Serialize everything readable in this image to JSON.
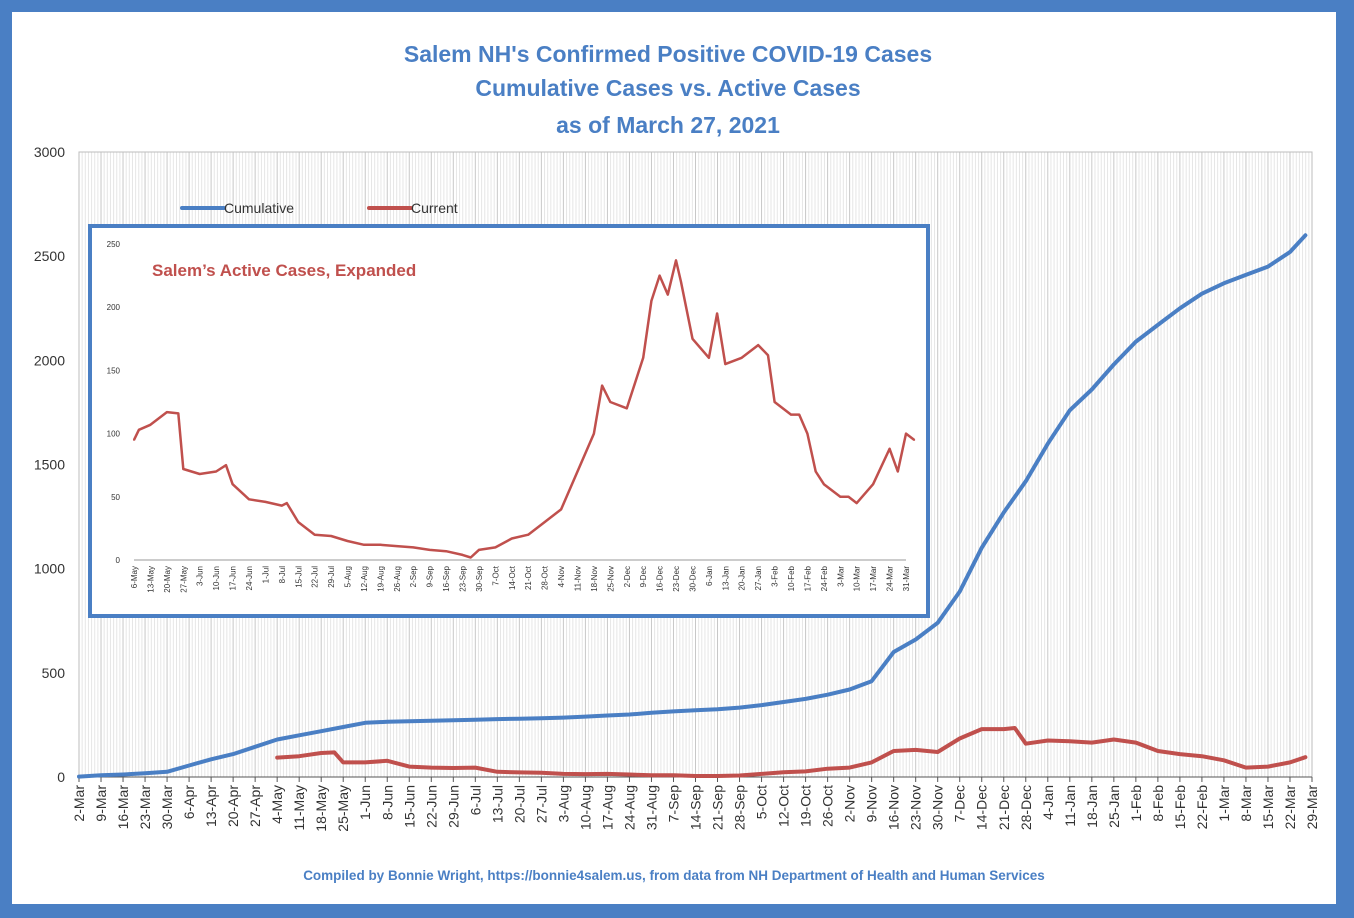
{
  "title_lines": [
    "Salem NH's Confirmed Positive COVID-19 Cases",
    "Cumulative Cases vs. Active Cases",
    "as of March 27, 2021"
  ],
  "footer": "Compiled by Bonnie Wright, https://bonnie4salem.us, from data from NH Department of Health and Human Services",
  "colors": {
    "cumulative": "#4a7fc4",
    "current": "#c0504d",
    "title": "#4a7fc4",
    "frame": "#4a7fc4"
  },
  "chart_data": [
    {
      "type": "line",
      "title": "",
      "xlabel": "",
      "ylabel": "",
      "ylim": [
        0,
        3000
      ],
      "y_ticks": [
        "0",
        "500",
        "1000",
        "1500",
        "2000",
        "2500",
        "3000"
      ],
      "x_ticks": [
        "2-Mar",
        "9-Mar",
        "16-Mar",
        "23-Mar",
        "30-Mar",
        "6-Apr",
        "13-Apr",
        "20-Apr",
        "27-Apr",
        "4-May",
        "11-May",
        "18-May",
        "25-May",
        "1-Jun",
        "8-Jun",
        "15-Jun",
        "22-Jun",
        "29-Jun",
        "6-Jul",
        "13-Jul",
        "20-Jul",
        "27-Jul",
        "3-Aug",
        "10-Aug",
        "17-Aug",
        "24-Aug",
        "31-Aug",
        "7-Sep",
        "14-Sep",
        "21-Sep",
        "28-Sep",
        "5-Oct",
        "12-Oct",
        "19-Oct",
        "26-Oct",
        "2-Nov",
        "9-Nov",
        "16-Nov",
        "23-Nov",
        "30-Nov",
        "7-Dec",
        "14-Dec",
        "21-Dec",
        "28-Dec",
        "4-Jan",
        "11-Jan",
        "18-Jan",
        "25-Jan",
        "1-Feb",
        "8-Feb",
        "15-Feb",
        "22-Feb",
        "1-Mar",
        "8-Mar",
        "15-Mar",
        "22-Mar",
        "29-Mar"
      ],
      "grid": true,
      "legend_position": "top-left",
      "series": [
        {
          "name": "Cumulative",
          "x_week": [
            0,
            1,
            2,
            3,
            4,
            5,
            6,
            7,
            8,
            9,
            10,
            11,
            12,
            13,
            14,
            15,
            16,
            17,
            18,
            19,
            20,
            21,
            22,
            23,
            24,
            25,
            26,
            27,
            28,
            29,
            30,
            31,
            32,
            33,
            34,
            35,
            36,
            37,
            38,
            39,
            40,
            41,
            42,
            43,
            44,
            45,
            46,
            47,
            48,
            49,
            50,
            51,
            52,
            53,
            54,
            55,
            55.7
          ],
          "values": [
            2,
            8,
            12,
            18,
            25,
            55,
            85,
            110,
            145,
            180,
            200,
            220,
            240,
            260,
            265,
            268,
            270,
            272,
            275,
            278,
            280,
            282,
            285,
            290,
            295,
            300,
            308,
            315,
            320,
            325,
            333,
            345,
            360,
            375,
            395,
            420,
            460,
            600,
            660,
            740,
            890,
            1100,
            1270,
            1420,
            1600,
            1760,
            1860,
            1980,
            2090,
            2170,
            2250,
            2320,
            2370,
            2410,
            2450,
            2520,
            2600
          ]
        },
        {
          "name": "Current",
          "x_week": [
            9,
            10,
            11,
            11.6,
            12,
            13,
            14,
            15,
            16,
            17,
            18,
            19,
            20,
            21,
            22,
            23,
            24,
            25,
            26,
            27,
            28,
            29,
            30,
            31,
            32,
            33,
            34,
            35,
            36,
            37,
            38,
            39,
            40,
            41,
            42,
            42.5,
            43,
            44,
            45,
            46,
            47,
            48,
            49,
            50,
            51,
            52,
            53,
            54,
            55,
            55.7
          ],
          "values": [
            93,
            100,
            115,
            118,
            70,
            70,
            78,
            50,
            45,
            43,
            45,
            25,
            22,
            20,
            15,
            14,
            15,
            12,
            8,
            8,
            5,
            5,
            7,
            15,
            23,
            27,
            40,
            45,
            70,
            125,
            130,
            120,
            185,
            230,
            230,
            235,
            160,
            175,
            172,
            165,
            180,
            165,
            125,
            110,
            100,
            80,
            45,
            50,
            70,
            95
          ]
        }
      ]
    },
    {
      "type": "line",
      "title": "Salem’s Active Cases, Expanded",
      "xlabel": "",
      "ylabel": "",
      "ylim": [
        0,
        250
      ],
      "y_ticks": [
        "0",
        "50",
        "100",
        "150",
        "200",
        "250"
      ],
      "x_ticks": [
        "6-May",
        "13-May",
        "20-May",
        "27-May",
        "3-Jun",
        "10-Jun",
        "17-Jun",
        "24-Jun",
        "1-Jul",
        "8-Jul",
        "15-Jul",
        "22-Jul",
        "29-Jul",
        "5-Aug",
        "12-Aug",
        "19-Aug",
        "26-Aug",
        "2-Sep",
        "9-Sep",
        "16-Sep",
        "23-Sep",
        "30-Sep",
        "7-Oct",
        "14-Oct",
        "21-Oct",
        "28-Oct",
        "4-Nov",
        "11-Nov",
        "18-Nov",
        "25-Nov",
        "2-Dec",
        "9-Dec",
        "16-Dec",
        "23-Dec",
        "30-Dec",
        "6-Jan",
        "13-Jan",
        "20-Jan",
        "27-Jan",
        "3-Feb",
        "10-Feb",
        "17-Feb",
        "24-Feb",
        "3-Mar",
        "10-Mar",
        "17-Mar",
        "24-Mar",
        "31-Mar"
      ],
      "grid": false,
      "series": [
        {
          "name": "",
          "x_week": [
            0,
            0.3,
            1,
            2,
            2.7,
            3,
            4,
            5,
            5.6,
            6,
            7,
            8,
            9,
            9.3,
            10,
            11,
            12,
            13,
            14,
            15,
            16,
            17,
            18,
            19,
            20,
            20.5,
            21,
            22,
            23,
            24,
            25,
            26,
            27,
            28,
            28.5,
            29,
            30,
            31,
            31.5,
            32,
            32.5,
            33,
            33.3,
            34,
            35,
            35.5,
            36,
            37,
            38,
            38.6,
            39,
            40,
            40.5,
            41,
            41.5,
            42,
            43,
            43.5,
            44,
            45,
            46,
            46.5,
            47,
            47.5
          ],
          "values": [
            95,
            103,
            107,
            117,
            116,
            72,
            68,
            70,
            75,
            60,
            48,
            46,
            43,
            45,
            30,
            20,
            19,
            15,
            12,
            12,
            11,
            10,
            8,
            7,
            4,
            2,
            8,
            10,
            17,
            20,
            30,
            40,
            70,
            100,
            138,
            125,
            120,
            160,
            205,
            225,
            210,
            237,
            220,
            175,
            160,
            195,
            155,
            160,
            170,
            162,
            125,
            115,
            115,
            100,
            70,
            60,
            50,
            50,
            45,
            60,
            88,
            70,
            100,
            95
          ]
        }
      ]
    }
  ],
  "legend": [
    "Cumulative",
    "Current"
  ]
}
